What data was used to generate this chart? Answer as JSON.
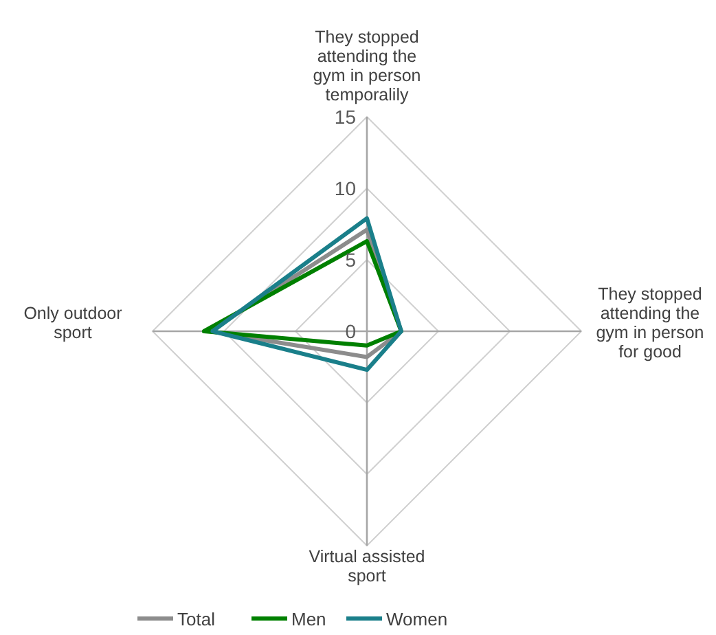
{
  "chart_data": {
    "type": "radar",
    "categories": [
      "They stopped attending the gym in person temporalily",
      "They stopped attending the gym in person for good",
      "Virtual assisted sport",
      "Only outdoor sport"
    ],
    "series": [
      {
        "name": "Total",
        "color": "#8c8c8c",
        "values": [
          7.1,
          2.4,
          1.8,
          11.0
        ]
      },
      {
        "name": "Men",
        "color": "#008000",
        "values": [
          6.3,
          2.4,
          1.0,
          11.4
        ]
      },
      {
        "name": "Women",
        "color": "#1a7f8a",
        "values": [
          7.9,
          2.4,
          2.7,
          10.8
        ]
      }
    ],
    "ylim": [
      0,
      15
    ],
    "yticks": [
      0,
      5,
      10,
      15
    ],
    "grid": true,
    "legend": "bottom",
    "marker": "none",
    "line_style": "solid"
  }
}
